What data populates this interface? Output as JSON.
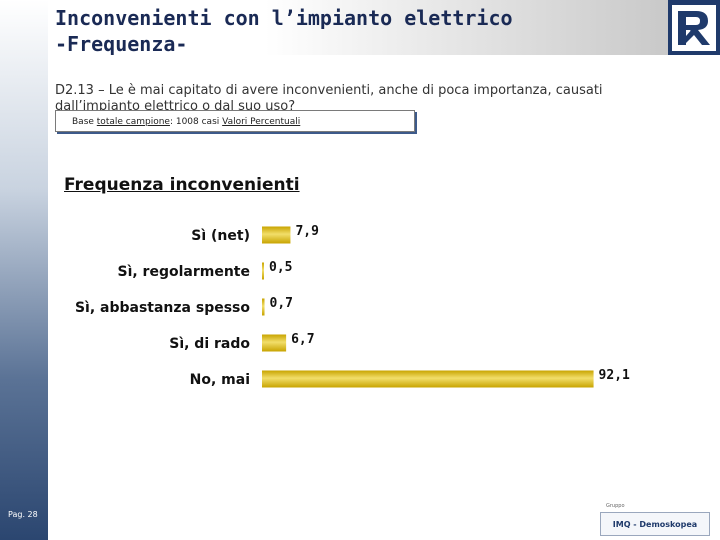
{
  "header": {
    "title_line1": "Inconvenienti con l’impianto elettrico",
    "title_line2": "-Frequenza-"
  },
  "question": "D2.13 – Le è mai capitato di avere inconvenienti, anche di poca importanza, causati dall’impianto elettrico o dal suo uso?",
  "base": {
    "prefix": "Base ",
    "link1": "totale campione",
    "middle": ": 1008 casi ",
    "link2": "Valori Percentuali"
  },
  "footer": {
    "page": "Pag. 28",
    "logo_text": "IMQ - Demoskopea",
    "logo_small": "Gruppo"
  },
  "colors": {
    "bar": "#c8a400",
    "bar_highlight": "#f2de6a",
    "sidebar_dark": "#2b4670"
  },
  "chart_data": {
    "type": "bar",
    "orientation": "horizontal",
    "title": "Frequenza inconvenienti",
    "categories": [
      "Sì (net)",
      "Sì, regolarmente",
      "Sì, abbastanza spesso",
      "Sì, di rado",
      "No, mai"
    ],
    "values": [
      7.9,
      0.5,
      0.7,
      6.7,
      92.1
    ],
    "value_labels": [
      "7,9",
      "0,5",
      "0,7",
      "6,7",
      "92,1"
    ],
    "xlim": [
      0,
      100
    ],
    "grid": false,
    "legend": "none"
  }
}
